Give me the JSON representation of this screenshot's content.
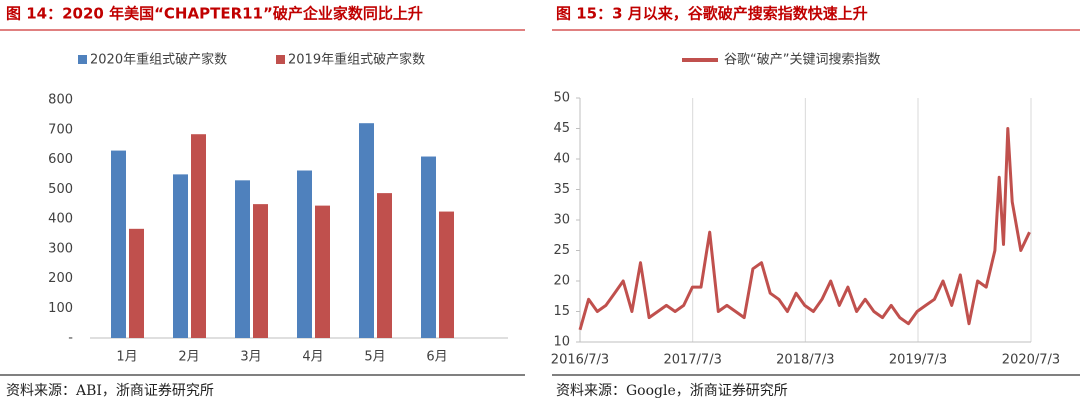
{
  "captions": [
    "图 14：2020 年美国“CHAPTER11”破产企业家数同比上升",
    "图 15：3 月以来，谷歌破产搜索指数快速上升"
  ],
  "sources": [
    "资料来源：ABI，浙商证券研究所",
    "资料来源：Google，浙商证券研究所"
  ],
  "chart_data": [
    {
      "type": "bar",
      "categories": [
        "1月",
        "2月",
        "3月",
        "4月",
        "5月",
        "6月"
      ],
      "series": [
        {
          "name": "2020年重组式破产家数",
          "color": "#4f81bd",
          "values": [
            630,
            550,
            530,
            563,
            722,
            610
          ]
        },
        {
          "name": "2019年重组式破产家数",
          "color": "#c0504d",
          "values": [
            367,
            685,
            450,
            445,
            487,
            425
          ]
        }
      ],
      "ylim": [
        0,
        800
      ],
      "yticks": [
        {
          "value": 0,
          "label": "-"
        },
        100,
        200,
        300,
        400,
        500,
        600,
        700,
        800
      ],
      "legend": "top"
    },
    {
      "type": "line",
      "x": [
        "2016/7/3",
        "2016/7/31",
        "2016/8/28",
        "2016/9/25",
        "2016/10/23",
        "2016/11/20",
        "2016/12/18",
        "2017/1/15",
        "2017/2/12",
        "2017/3/12",
        "2017/4/9",
        "2017/5/7",
        "2017/6/4",
        "2017/7/2",
        "2017/7/30",
        "2017/8/27",
        "2017/9/24",
        "2017/10/22",
        "2017/11/19",
        "2017/12/17",
        "2018/1/14",
        "2018/2/11",
        "2018/3/11",
        "2018/4/8",
        "2018/5/6",
        "2018/6/3",
        "2018/7/1",
        "2018/7/29",
        "2018/8/26",
        "2018/9/23",
        "2018/10/21",
        "2018/11/18",
        "2018/12/16",
        "2019/1/13",
        "2019/2/10",
        "2019/3/10",
        "2019/4/7",
        "2019/5/5",
        "2019/6/2",
        "2019/6/30",
        "2019/7/28",
        "2019/8/25",
        "2019/9/22",
        "2019/10/20",
        "2019/11/17",
        "2019/12/15",
        "2020/1/12",
        "2020/2/9",
        "2020/3/8",
        "2020/3/22",
        "2020/4/5",
        "2020/4/19",
        "2020/5/3",
        "2020/5/31",
        "2020/6/28"
      ],
      "series": [
        {
          "name": "谷歌“破产”关键词搜索指数",
          "color": "#c0504d",
          "values": [
            12,
            17,
            15,
            16,
            18,
            20,
            15,
            23,
            14,
            15,
            16,
            15,
            16,
            19,
            19,
            28,
            15,
            16,
            15,
            14,
            22,
            23,
            18,
            17,
            15,
            18,
            16,
            15,
            17,
            20,
            16,
            19,
            15,
            17,
            15,
            14,
            16,
            14,
            13,
            15,
            16,
            17,
            20,
            16,
            21,
            13,
            20,
            19,
            25,
            37,
            26,
            45,
            33,
            25,
            28
          ]
        }
      ],
      "xlim": [
        "2016/7/3",
        "2020/7/3"
      ],
      "xticks": [
        "2016/7/3",
        "2017/7/3",
        "2018/7/3",
        "2019/7/3",
        "2020/7/3"
      ],
      "ylim": [
        10,
        50
      ],
      "yticks": [
        10,
        15,
        20,
        25,
        30,
        35,
        40,
        45,
        50
      ],
      "grid": "x",
      "legend": "top"
    }
  ]
}
